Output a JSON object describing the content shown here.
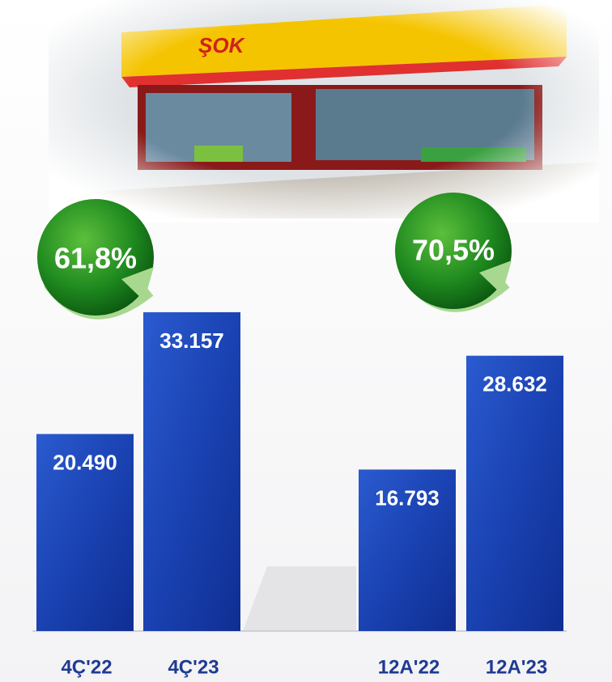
{
  "chart_data": {
    "type": "bar",
    "categories": [
      "4Ç'22",
      "4Ç'23",
      "12A'22",
      "12A'23"
    ],
    "values": [
      20490,
      33157,
      16793,
      28632
    ],
    "value_labels": [
      "20.490",
      "33.157",
      "16.793",
      "28.632"
    ],
    "color": "#1b45b8",
    "ylim": [
      0,
      35000
    ],
    "annotations": [
      "61,8%",
      "70,5%"
    ]
  }
}
